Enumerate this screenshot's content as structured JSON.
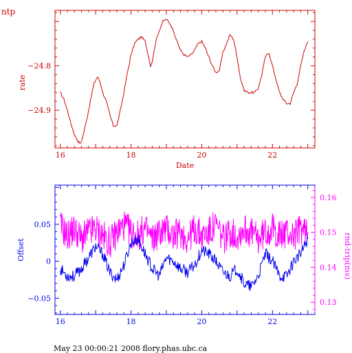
{
  "chart_data": [
    {
      "type": "line",
      "corner_label": "ntp",
      "xlabel": "Date",
      "ylabel": "rate",
      "xlim": [
        15.85,
        23.2
      ],
      "ylim": [
        -24.985,
        -24.675
      ],
      "x_ticks": [
        16,
        18,
        20,
        22
      ],
      "y_ticks": [
        -24.8,
        -24.9
      ],
      "series": [
        {
          "color": "#cc0000",
          "x": [
            16.0,
            16.1,
            16.2,
            16.3,
            16.4,
            16.5,
            16.58,
            16.65,
            16.75,
            16.85,
            16.95,
            17.05,
            17.12,
            17.2,
            17.3,
            17.4,
            17.5,
            17.6,
            17.7,
            17.8,
            17.9,
            18.0,
            18.1,
            18.2,
            18.3,
            18.4,
            18.5,
            18.55,
            18.6,
            18.7,
            18.8,
            18.9,
            19.0,
            19.1,
            19.2,
            19.3,
            19.4,
            19.5,
            19.6,
            19.7,
            19.8,
            19.9,
            20.0,
            20.1,
            20.2,
            20.3,
            20.4,
            20.5,
            20.6,
            20.7,
            20.8,
            20.9,
            21.0,
            21.1,
            21.2,
            21.3,
            21.4,
            21.5,
            21.6,
            21.7,
            21.8,
            21.9,
            22.0,
            22.1,
            22.2,
            22.3,
            22.4,
            22.5,
            22.6,
            22.7,
            22.8,
            22.9,
            23.0
          ],
          "y": [
            -24.86,
            -24.875,
            -24.9,
            -24.93,
            -24.955,
            -24.97,
            -24.975,
            -24.955,
            -24.92,
            -24.88,
            -24.84,
            -24.825,
            -24.835,
            -24.86,
            -24.88,
            -24.91,
            -24.935,
            -24.935,
            -24.9,
            -24.86,
            -24.815,
            -24.775,
            -24.75,
            -24.74,
            -24.735,
            -24.745,
            -24.78,
            -24.8,
            -24.79,
            -24.745,
            -24.72,
            -24.7,
            -24.695,
            -24.705,
            -24.72,
            -24.745,
            -24.765,
            -24.775,
            -24.78,
            -24.775,
            -24.765,
            -24.75,
            -24.745,
            -24.76,
            -24.78,
            -24.8,
            -24.815,
            -24.81,
            -24.77,
            -24.75,
            -24.73,
            -24.74,
            -24.78,
            -24.83,
            -24.855,
            -24.86,
            -24.86,
            -24.86,
            -24.85,
            -24.82,
            -24.78,
            -24.77,
            -24.8,
            -24.83,
            -24.86,
            -24.875,
            -24.885,
            -24.885,
            -24.86,
            -24.84,
            -24.8,
            -24.765,
            -24.745
          ]
        }
      ]
    },
    {
      "type": "line",
      "xlabel": "",
      "ylabel": "Offset",
      "y2label": "rnd-trip(ms)",
      "xlim": [
        15.85,
        23.2
      ],
      "ylim": [
        -0.072,
        0.103
      ],
      "y2lim": [
        0.1265,
        0.1635
      ],
      "x_ticks": [
        16,
        18,
        20,
        22
      ],
      "y_ticks": [
        0.05,
        0,
        -0.05
      ],
      "y2_ticks": [
        0.16,
        0.15,
        0.14,
        0.13
      ],
      "series": [
        {
          "axis": "left",
          "color": "#0000ee",
          "x": [
            16.0,
            16.2,
            16.4,
            16.6,
            16.8,
            17.0,
            17.2,
            17.4,
            17.6,
            17.8,
            18.0,
            18.2,
            18.4,
            18.6,
            18.8,
            19.0,
            19.2,
            19.4,
            19.6,
            19.8,
            20.0,
            20.2,
            20.4,
            20.6,
            20.8,
            21.0,
            21.2,
            21.4,
            21.6,
            21.8,
            22.0,
            22.2,
            22.4,
            22.6,
            22.8,
            23.0
          ],
          "y": [
            -0.01,
            -0.02,
            -0.02,
            -0.01,
            0.005,
            0.02,
            0.01,
            -0.015,
            -0.025,
            -0.005,
            0.025,
            0.03,
            0.01,
            -0.01,
            -0.02,
            0.005,
            0.0,
            -0.01,
            -0.015,
            -0.005,
            0.015,
            0.01,
            0.0,
            -0.015,
            -0.02,
            -0.01,
            -0.03,
            -0.035,
            -0.02,
            0.01,
            0.0,
            -0.02,
            -0.02,
            0.0,
            0.01,
            0.03
          ]
        },
        {
          "axis": "right",
          "color": "#ff00ff",
          "x": [
            16.0,
            16.2,
            16.4,
            16.6,
            16.8,
            17.0,
            17.2,
            17.4,
            17.6,
            17.8,
            18.0,
            18.2,
            18.4,
            18.6,
            18.8,
            19.0,
            19.2,
            19.4,
            19.6,
            19.8,
            20.0,
            20.2,
            20.4,
            20.6,
            20.8,
            21.0,
            21.2,
            21.4,
            21.6,
            21.8,
            22.0,
            22.2,
            22.4,
            22.6,
            22.8,
            23.0
          ],
          "y": [
            0.152,
            0.149,
            0.151,
            0.148,
            0.15,
            0.151,
            0.149,
            0.147,
            0.15,
            0.152,
            0.15,
            0.149,
            0.151,
            0.148,
            0.15,
            0.151,
            0.149,
            0.15,
            0.148,
            0.151,
            0.149,
            0.15,
            0.152,
            0.148,
            0.15,
            0.149,
            0.151,
            0.15,
            0.148,
            0.15,
            0.151,
            0.149,
            0.15,
            0.149,
            0.151,
            0.15
          ]
        }
      ]
    }
  ],
  "footer": "May 23 00:00:21 2008 flory.phas.ubc.ca"
}
